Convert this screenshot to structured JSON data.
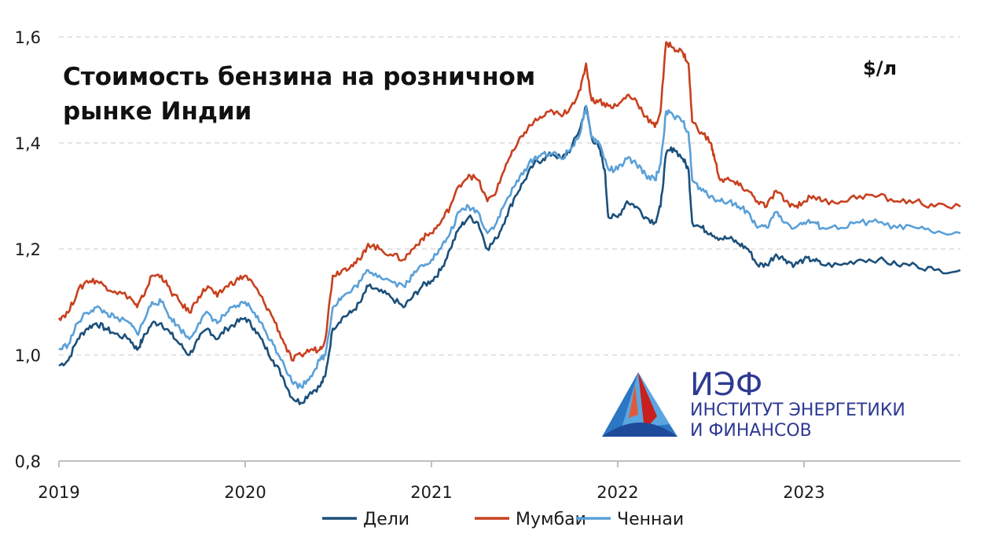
{
  "chart_data": {
    "type": "line",
    "title_lines": [
      "Стоимость бензина на розничном",
      "рынке Индии"
    ],
    "unit": "$/л",
    "xlabel": "",
    "ylabel": "",
    "x_ticks": [
      "2019",
      "2020",
      "2021",
      "2022",
      "2023"
    ],
    "x_range": [
      2019.0,
      2023.84
    ],
    "ylim": [
      0.8,
      1.6
    ],
    "y_ticks": [
      "0,8",
      "1,0",
      "1,2",
      "1,4",
      "1,6"
    ],
    "y_tick_values": [
      0.8,
      1.0,
      1.2,
      1.4,
      1.6
    ],
    "grid": "horizontal-dashed",
    "legend_position": "bottom",
    "series": [
      {
        "name": "Дели",
        "color": "#1b4f7a",
        "points": [
          [
            2019.0,
            0.98
          ],
          [
            2019.05,
            0.99
          ],
          [
            2019.1,
            1.03
          ],
          [
            2019.15,
            1.05
          ],
          [
            2019.2,
            1.06
          ],
          [
            2019.25,
            1.05
          ],
          [
            2019.3,
            1.04
          ],
          [
            2019.38,
            1.03
          ],
          [
            2019.42,
            1.01
          ],
          [
            2019.45,
            1.03
          ],
          [
            2019.5,
            1.06
          ],
          [
            2019.55,
            1.06
          ],
          [
            2019.6,
            1.04
          ],
          [
            2019.65,
            1.02
          ],
          [
            2019.7,
            1.0
          ],
          [
            2019.75,
            1.03
          ],
          [
            2019.8,
            1.05
          ],
          [
            2019.85,
            1.03
          ],
          [
            2019.9,
            1.05
          ],
          [
            2019.95,
            1.06
          ],
          [
            2020.0,
            1.07
          ],
          [
            2020.05,
            1.05
          ],
          [
            2020.1,
            1.02
          ],
          [
            2020.15,
            0.99
          ],
          [
            2020.2,
            0.96
          ],
          [
            2020.25,
            0.92
          ],
          [
            2020.3,
            0.91
          ],
          [
            2020.35,
            0.93
          ],
          [
            2020.4,
            0.94
          ],
          [
            2020.43,
            0.96
          ],
          [
            2020.47,
            1.05
          ],
          [
            2020.52,
            1.07
          ],
          [
            2020.57,
            1.08
          ],
          [
            2020.62,
            1.1
          ],
          [
            2020.66,
            1.13
          ],
          [
            2020.72,
            1.12
          ],
          [
            2020.78,
            1.11
          ],
          [
            2020.85,
            1.09
          ],
          [
            2020.9,
            1.11
          ],
          [
            2020.95,
            1.13
          ],
          [
            2021.0,
            1.14
          ],
          [
            2021.05,
            1.16
          ],
          [
            2021.1,
            1.2
          ],
          [
            2021.15,
            1.24
          ],
          [
            2021.2,
            1.26
          ],
          [
            2021.25,
            1.25
          ],
          [
            2021.3,
            1.2
          ],
          [
            2021.35,
            1.22
          ],
          [
            2021.4,
            1.26
          ],
          [
            2021.45,
            1.3
          ],
          [
            2021.5,
            1.33
          ],
          [
            2021.55,
            1.36
          ],
          [
            2021.6,
            1.37
          ],
          [
            2021.65,
            1.38
          ],
          [
            2021.7,
            1.37
          ],
          [
            2021.75,
            1.39
          ],
          [
            2021.8,
            1.43
          ],
          [
            2021.83,
            1.47
          ],
          [
            2021.86,
            1.41
          ],
          [
            2021.9,
            1.39
          ],
          [
            2021.93,
            1.35
          ],
          [
            2021.95,
            1.26
          ],
          [
            2022.0,
            1.26
          ],
          [
            2022.05,
            1.29
          ],
          [
            2022.1,
            1.28
          ],
          [
            2022.15,
            1.26
          ],
          [
            2022.2,
            1.25
          ],
          [
            2022.23,
            1.28
          ],
          [
            2022.26,
            1.38
          ],
          [
            2022.3,
            1.39
          ],
          [
            2022.35,
            1.37
          ],
          [
            2022.38,
            1.35
          ],
          [
            2022.4,
            1.25
          ],
          [
            2022.45,
            1.24
          ],
          [
            2022.5,
            1.23
          ],
          [
            2022.55,
            1.22
          ],
          [
            2022.6,
            1.22
          ],
          [
            2022.65,
            1.21
          ],
          [
            2022.7,
            1.2
          ],
          [
            2022.75,
            1.17
          ],
          [
            2022.8,
            1.17
          ],
          [
            2022.85,
            1.19
          ],
          [
            2022.9,
            1.18
          ],
          [
            2022.95,
            1.17
          ],
          [
            2023.0,
            1.18
          ],
          [
            2023.05,
            1.18
          ],
          [
            2023.1,
            1.17
          ],
          [
            2023.2,
            1.17
          ],
          [
            2023.3,
            1.18
          ],
          [
            2023.4,
            1.18
          ],
          [
            2023.5,
            1.17
          ],
          [
            2023.6,
            1.17
          ],
          [
            2023.7,
            1.16
          ],
          [
            2023.84,
            1.16
          ]
        ]
      },
      {
        "name": "Мумбаи",
        "color": "#c8401e",
        "points": [
          [
            2019.0,
            1.07
          ],
          [
            2019.05,
            1.08
          ],
          [
            2019.1,
            1.12
          ],
          [
            2019.15,
            1.14
          ],
          [
            2019.2,
            1.14
          ],
          [
            2019.25,
            1.13
          ],
          [
            2019.3,
            1.12
          ],
          [
            2019.38,
            1.11
          ],
          [
            2019.42,
            1.09
          ],
          [
            2019.45,
            1.11
          ],
          [
            2019.5,
            1.15
          ],
          [
            2019.55,
            1.15
          ],
          [
            2019.6,
            1.12
          ],
          [
            2019.65,
            1.1
          ],
          [
            2019.7,
            1.08
          ],
          [
            2019.75,
            1.11
          ],
          [
            2019.8,
            1.13
          ],
          [
            2019.85,
            1.11
          ],
          [
            2019.9,
            1.13
          ],
          [
            2019.95,
            1.14
          ],
          [
            2020.0,
            1.15
          ],
          [
            2020.05,
            1.13
          ],
          [
            2020.1,
            1.1
          ],
          [
            2020.15,
            1.07
          ],
          [
            2020.2,
            1.03
          ],
          [
            2020.25,
            0.99
          ],
          [
            2020.3,
            1.0
          ],
          [
            2020.35,
            1.01
          ],
          [
            2020.4,
            1.01
          ],
          [
            2020.43,
            1.03
          ],
          [
            2020.47,
            1.15
          ],
          [
            2020.52,
            1.16
          ],
          [
            2020.57,
            1.17
          ],
          [
            2020.62,
            1.18
          ],
          [
            2020.66,
            1.21
          ],
          [
            2020.72,
            1.2
          ],
          [
            2020.78,
            1.19
          ],
          [
            2020.85,
            1.18
          ],
          [
            2020.9,
            1.2
          ],
          [
            2020.95,
            1.22
          ],
          [
            2021.0,
            1.23
          ],
          [
            2021.05,
            1.25
          ],
          [
            2021.1,
            1.28
          ],
          [
            2021.15,
            1.32
          ],
          [
            2021.2,
            1.34
          ],
          [
            2021.25,
            1.33
          ],
          [
            2021.3,
            1.29
          ],
          [
            2021.35,
            1.31
          ],
          [
            2021.4,
            1.36
          ],
          [
            2021.45,
            1.39
          ],
          [
            2021.5,
            1.42
          ],
          [
            2021.55,
            1.44
          ],
          [
            2021.6,
            1.45
          ],
          [
            2021.65,
            1.46
          ],
          [
            2021.7,
            1.45
          ],
          [
            2021.75,
            1.47
          ],
          [
            2021.8,
            1.5
          ],
          [
            2021.83,
            1.55
          ],
          [
            2021.86,
            1.48
          ],
          [
            2021.9,
            1.48
          ],
          [
            2021.95,
            1.47
          ],
          [
            2022.0,
            1.47
          ],
          [
            2022.05,
            1.49
          ],
          [
            2022.1,
            1.48
          ],
          [
            2022.15,
            1.45
          ],
          [
            2022.2,
            1.43
          ],
          [
            2022.23,
            1.46
          ],
          [
            2022.26,
            1.59
          ],
          [
            2022.3,
            1.58
          ],
          [
            2022.35,
            1.57
          ],
          [
            2022.38,
            1.55
          ],
          [
            2022.4,
            1.44
          ],
          [
            2022.45,
            1.42
          ],
          [
            2022.5,
            1.4
          ],
          [
            2022.52,
            1.37
          ],
          [
            2022.55,
            1.33
          ],
          [
            2022.6,
            1.33
          ],
          [
            2022.65,
            1.32
          ],
          [
            2022.7,
            1.31
          ],
          [
            2022.75,
            1.29
          ],
          [
            2022.8,
            1.28
          ],
          [
            2022.85,
            1.31
          ],
          [
            2022.9,
            1.29
          ],
          [
            2022.95,
            1.28
          ],
          [
            2023.0,
            1.29
          ],
          [
            2023.05,
            1.3
          ],
          [
            2023.1,
            1.29
          ],
          [
            2023.2,
            1.29
          ],
          [
            2023.3,
            1.3
          ],
          [
            2023.4,
            1.3
          ],
          [
            2023.5,
            1.29
          ],
          [
            2023.6,
            1.29
          ],
          [
            2023.7,
            1.28
          ],
          [
            2023.84,
            1.28
          ]
        ]
      },
      {
        "name": "Ченнаи",
        "color": "#5aa0d8",
        "points": [
          [
            2019.0,
            1.01
          ],
          [
            2019.05,
            1.02
          ],
          [
            2019.1,
            1.06
          ],
          [
            2019.15,
            1.08
          ],
          [
            2019.2,
            1.09
          ],
          [
            2019.25,
            1.08
          ],
          [
            2019.3,
            1.07
          ],
          [
            2019.38,
            1.06
          ],
          [
            2019.42,
            1.04
          ],
          [
            2019.45,
            1.06
          ],
          [
            2019.5,
            1.1
          ],
          [
            2019.55,
            1.1
          ],
          [
            2019.6,
            1.07
          ],
          [
            2019.65,
            1.05
          ],
          [
            2019.7,
            1.03
          ],
          [
            2019.75,
            1.06
          ],
          [
            2019.8,
            1.08
          ],
          [
            2019.85,
            1.06
          ],
          [
            2019.9,
            1.08
          ],
          [
            2019.95,
            1.09
          ],
          [
            2020.0,
            1.1
          ],
          [
            2020.05,
            1.08
          ],
          [
            2020.1,
            1.05
          ],
          [
            2020.15,
            1.02
          ],
          [
            2020.2,
            0.99
          ],
          [
            2020.25,
            0.95
          ],
          [
            2020.3,
            0.94
          ],
          [
            2020.35,
            0.96
          ],
          [
            2020.4,
            0.99
          ],
          [
            2020.43,
            1.0
          ],
          [
            2020.47,
            1.09
          ],
          [
            2020.52,
            1.11
          ],
          [
            2020.57,
            1.12
          ],
          [
            2020.62,
            1.14
          ],
          [
            2020.66,
            1.16
          ],
          [
            2020.72,
            1.15
          ],
          [
            2020.78,
            1.14
          ],
          [
            2020.85,
            1.13
          ],
          [
            2020.9,
            1.15
          ],
          [
            2020.95,
            1.17
          ],
          [
            2021.0,
            1.18
          ],
          [
            2021.05,
            1.2
          ],
          [
            2021.1,
            1.23
          ],
          [
            2021.15,
            1.27
          ],
          [
            2021.2,
            1.28
          ],
          [
            2021.25,
            1.27
          ],
          [
            2021.3,
            1.23
          ],
          [
            2021.35,
            1.25
          ],
          [
            2021.4,
            1.29
          ],
          [
            2021.45,
            1.32
          ],
          [
            2021.5,
            1.35
          ],
          [
            2021.55,
            1.37
          ],
          [
            2021.6,
            1.38
          ],
          [
            2021.65,
            1.38
          ],
          [
            2021.7,
            1.37
          ],
          [
            2021.75,
            1.39
          ],
          [
            2021.8,
            1.42
          ],
          [
            2021.83,
            1.47
          ],
          [
            2021.86,
            1.41
          ],
          [
            2021.9,
            1.4
          ],
          [
            2021.95,
            1.35
          ],
          [
            2022.0,
            1.35
          ],
          [
            2022.05,
            1.37
          ],
          [
            2022.1,
            1.36
          ],
          [
            2022.15,
            1.34
          ],
          [
            2022.2,
            1.33
          ],
          [
            2022.23,
            1.36
          ],
          [
            2022.26,
            1.46
          ],
          [
            2022.3,
            1.45
          ],
          [
            2022.35,
            1.44
          ],
          [
            2022.38,
            1.42
          ],
          [
            2022.4,
            1.33
          ],
          [
            2022.45,
            1.31
          ],
          [
            2022.5,
            1.3
          ],
          [
            2022.55,
            1.29
          ],
          [
            2022.6,
            1.29
          ],
          [
            2022.65,
            1.28
          ],
          [
            2022.7,
            1.27
          ],
          [
            2022.75,
            1.24
          ],
          [
            2022.8,
            1.24
          ],
          [
            2022.85,
            1.27
          ],
          [
            2022.9,
            1.25
          ],
          [
            2022.95,
            1.24
          ],
          [
            2023.0,
            1.25
          ],
          [
            2023.05,
            1.25
          ],
          [
            2023.1,
            1.24
          ],
          [
            2023.2,
            1.24
          ],
          [
            2023.3,
            1.25
          ],
          [
            2023.4,
            1.25
          ],
          [
            2023.5,
            1.24
          ],
          [
            2023.6,
            1.24
          ],
          [
            2023.7,
            1.23
          ],
          [
            2023.84,
            1.23
          ]
        ]
      }
    ]
  },
  "logo": {
    "acronym": "ИЭФ",
    "line1": "ИНСТИТУТ ЭНЕРГЕТИКИ",
    "line2": "И ФИНАНСОВ"
  }
}
